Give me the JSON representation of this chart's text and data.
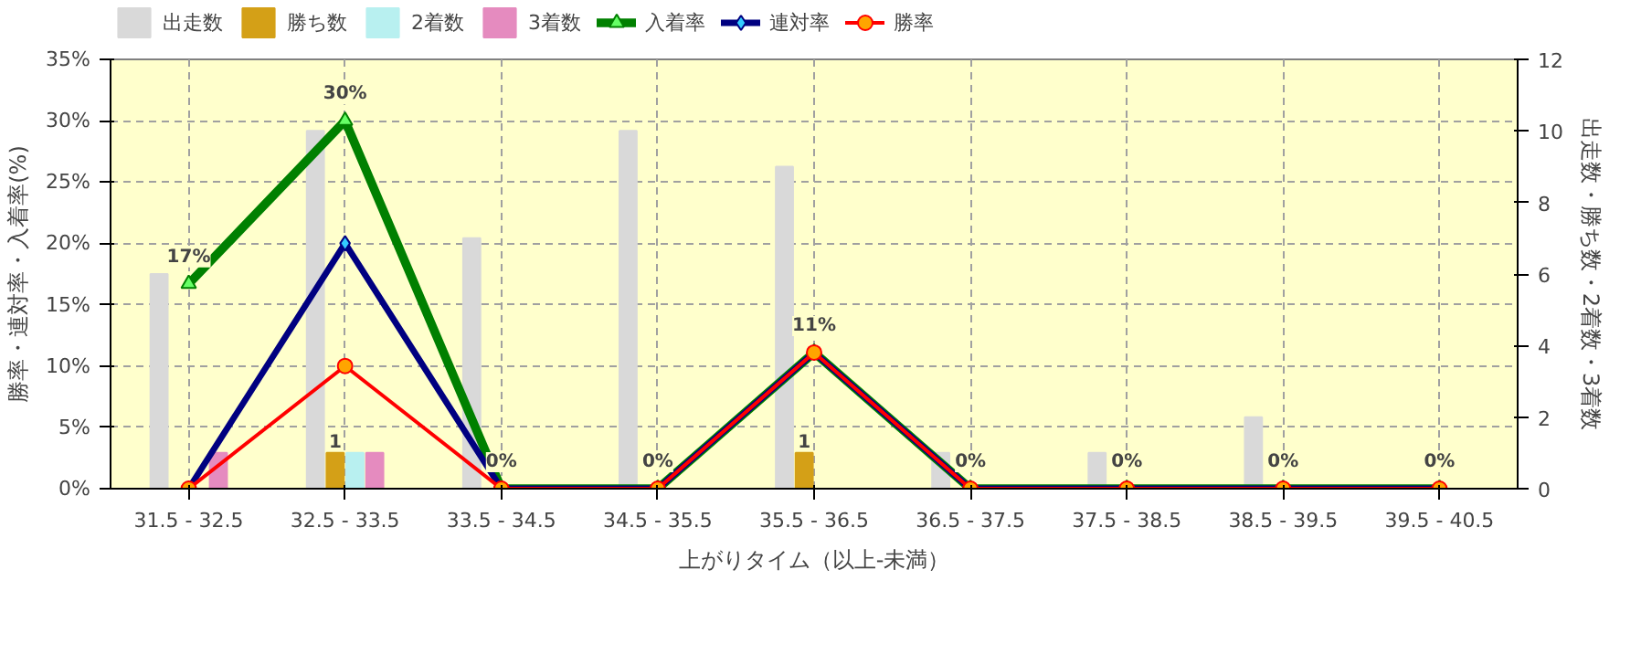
{
  "chart_data": {
    "type": "bar",
    "xlabel": "上がりタイム（以上-未満）",
    "ylabel": "勝率・連対率・入着率(%)",
    "y2label": "出走数・勝ち数・2着数・3着数",
    "categories": [
      "31.5 - 32.5",
      "32.5 - 33.5",
      "33.5 - 34.5",
      "34.5 - 35.5",
      "35.5 - 36.5",
      "36.5 - 37.5",
      "37.5 - 38.5",
      "38.5 - 39.5",
      "39.5 - 40.5"
    ],
    "series": [
      {
        "name": "出走数",
        "axis": "y2",
        "color": "#d9d9d9",
        "values": [
          6,
          10,
          7,
          10,
          9,
          1,
          1,
          2,
          0
        ]
      },
      {
        "name": "勝ち数",
        "axis": "y2",
        "color": "#d4a017",
        "values": [
          0,
          1,
          0,
          0,
          1,
          0,
          0,
          0,
          0
        ],
        "value_labels": [
          null,
          "1",
          null,
          null,
          "1",
          null,
          null,
          null,
          null
        ]
      },
      {
        "name": "2着数",
        "axis": "y2",
        "color": "#b8f0f0",
        "values": [
          0,
          1,
          0,
          0,
          0,
          0,
          0,
          0,
          0
        ]
      },
      {
        "name": "3着数",
        "axis": "y2",
        "color": "#e58bbf",
        "values": [
          1,
          1,
          0,
          0,
          0,
          0,
          0,
          0,
          0
        ]
      },
      {
        "name": "入着率",
        "type": "line",
        "marker": "triangle",
        "color": "#008000",
        "values": [
          16.7,
          30,
          0,
          0,
          11.1,
          0,
          0,
          0,
          0
        ],
        "value_labels": [
          "17%",
          "30%",
          "0%",
          "0%",
          "11%",
          "0%",
          "0%",
          "0%",
          "0%"
        ]
      },
      {
        "name": "連対率",
        "type": "line",
        "marker": "diamond",
        "color": "#000080",
        "values": [
          0,
          20,
          0,
          0,
          11.1,
          0,
          0,
          0,
          0
        ]
      },
      {
        "name": "勝率",
        "type": "line",
        "marker": "circle",
        "color": "#ff0000",
        "values": [
          0,
          10,
          0,
          0,
          11.1,
          0,
          0,
          0,
          0
        ]
      }
    ],
    "ylim": [
      0,
      35
    ],
    "yticks": [
      {
        "value": 0,
        "label": "0%"
      },
      {
        "value": 5,
        "label": "5%"
      },
      {
        "value": 10,
        "label": "10%"
      },
      {
        "value": 15,
        "label": "15%"
      },
      {
        "value": 20,
        "label": "20%"
      },
      {
        "value": 25,
        "label": "25%"
      },
      {
        "value": 30,
        "label": "30%"
      },
      {
        "value": 35,
        "label": "35%"
      }
    ],
    "y2lim": [
      0,
      12
    ],
    "y2ticks": [
      0,
      2,
      4,
      6,
      8,
      10,
      12
    ],
    "grid": true,
    "legend": "top left"
  }
}
